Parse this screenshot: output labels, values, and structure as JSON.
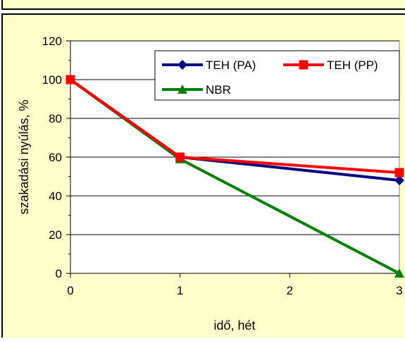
{
  "chart_data": {
    "type": "line",
    "title": "",
    "xlabel": "idő, hét",
    "ylabel": "szakadási nyúlás, %",
    "x": [
      0,
      1,
      3
    ],
    "xlim": [
      0,
      3
    ],
    "ylim": [
      0,
      120
    ],
    "x_ticks": [
      0,
      1,
      2,
      3
    ],
    "y_ticks": [
      0,
      20,
      40,
      60,
      80,
      100,
      120
    ],
    "x_tick_labels": [
      "0",
      "1",
      "2",
      "3"
    ],
    "y_tick_labels": [
      "0",
      "20",
      "40",
      "60",
      "80",
      "100",
      "120"
    ],
    "grid": "horizontal",
    "legend_position": "top-right",
    "series": [
      {
        "name": "TEH (PA)",
        "values": [
          100,
          60,
          48
        ],
        "color": "#000080",
        "marker": "diamond"
      },
      {
        "name": "TEH (PP)",
        "values": [
          100,
          60,
          52
        ],
        "color": "#ff0000",
        "marker": "square"
      },
      {
        "name": "NBR",
        "values": [
          100,
          59,
          0
        ],
        "color": "#008000",
        "marker": "triangle"
      }
    ],
    "background_color": "#ffffcc",
    "plot_area_color": "#ffffff"
  }
}
